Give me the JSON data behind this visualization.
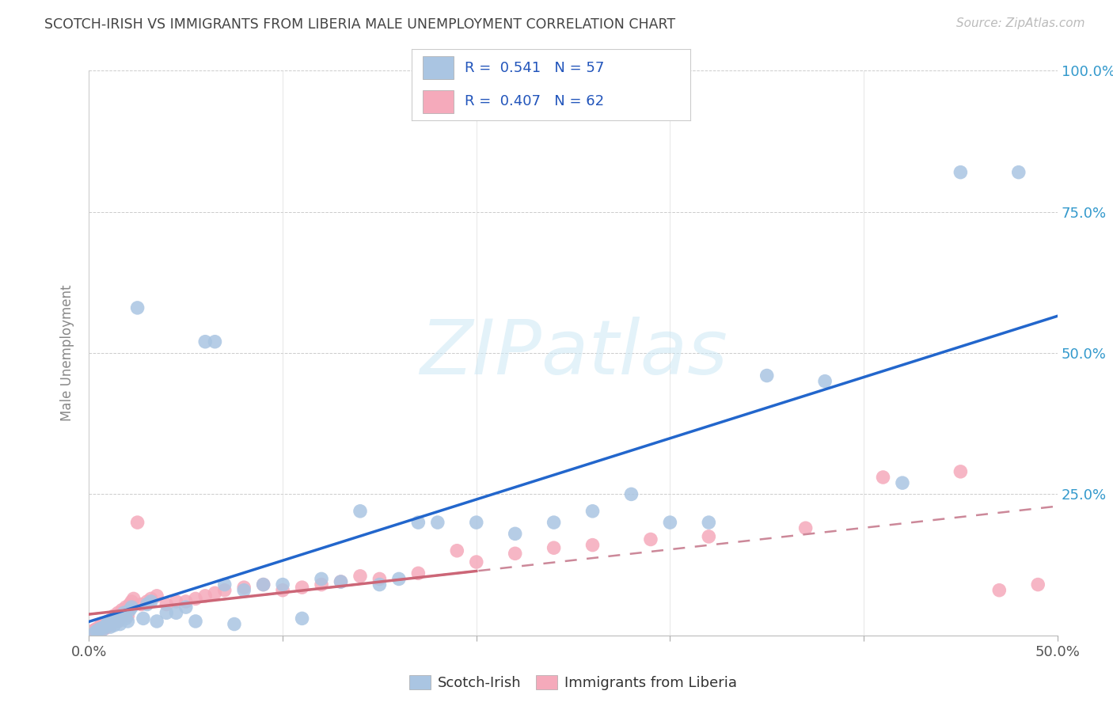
{
  "title": "SCOTCH-IRISH VS IMMIGRANTS FROM LIBERIA MALE UNEMPLOYMENT CORRELATION CHART",
  "source": "Source: ZipAtlas.com",
  "ylabel": "Male Unemployment",
  "xlim": [
    0.0,
    0.5
  ],
  "ylim": [
    0.0,
    1.0
  ],
  "scotch_irish_color": "#aac5e2",
  "liberia_color": "#f5aabb",
  "scotch_irish_line_color": "#2266cc",
  "liberia_line_color_solid": "#cc6677",
  "liberia_line_color_dash": "#cc8899",
  "background_color": "#ffffff",
  "watermark": "ZIPatlas",
  "scotch_irish_x": [
    0.003,
    0.004,
    0.005,
    0.006,
    0.007,
    0.008,
    0.009,
    0.01,
    0.01,
    0.011,
    0.012,
    0.013,
    0.014,
    0.015,
    0.016,
    0.017,
    0.018,
    0.019,
    0.02,
    0.021,
    0.022,
    0.025,
    0.028,
    0.03,
    0.032,
    0.035,
    0.04,
    0.045,
    0.05,
    0.055,
    0.06,
    0.065,
    0.07,
    0.075,
    0.08,
    0.09,
    0.1,
    0.11,
    0.12,
    0.13,
    0.14,
    0.15,
    0.16,
    0.17,
    0.18,
    0.2,
    0.22,
    0.24,
    0.26,
    0.28,
    0.3,
    0.32,
    0.35,
    0.38,
    0.42,
    0.45,
    0.48
  ],
  "scotch_irish_y": [
    0.005,
    0.008,
    0.01,
    0.012,
    0.01,
    0.015,
    0.018,
    0.02,
    0.025,
    0.015,
    0.022,
    0.018,
    0.03,
    0.025,
    0.02,
    0.035,
    0.04,
    0.03,
    0.025,
    0.045,
    0.05,
    0.58,
    0.03,
    0.055,
    0.06,
    0.025,
    0.04,
    0.04,
    0.05,
    0.025,
    0.52,
    0.52,
    0.09,
    0.02,
    0.08,
    0.09,
    0.09,
    0.03,
    0.1,
    0.095,
    0.22,
    0.09,
    0.1,
    0.2,
    0.2,
    0.2,
    0.18,
    0.2,
    0.22,
    0.25,
    0.2,
    0.2,
    0.46,
    0.45,
    0.27,
    0.82,
    0.82
  ],
  "liberia_x": [
    0.001,
    0.002,
    0.003,
    0.004,
    0.005,
    0.006,
    0.006,
    0.007,
    0.008,
    0.008,
    0.009,
    0.01,
    0.01,
    0.011,
    0.012,
    0.012,
    0.013,
    0.013,
    0.014,
    0.015,
    0.015,
    0.016,
    0.017,
    0.018,
    0.019,
    0.02,
    0.021,
    0.022,
    0.023,
    0.025,
    0.027,
    0.03,
    0.032,
    0.035,
    0.04,
    0.045,
    0.05,
    0.055,
    0.06,
    0.065,
    0.07,
    0.08,
    0.09,
    0.1,
    0.11,
    0.12,
    0.13,
    0.14,
    0.15,
    0.17,
    0.19,
    0.2,
    0.22,
    0.24,
    0.26,
    0.29,
    0.32,
    0.37,
    0.41,
    0.45,
    0.47,
    0.49
  ],
  "liberia_y": [
    0.005,
    0.008,
    0.01,
    0.012,
    0.01,
    0.015,
    0.018,
    0.02,
    0.012,
    0.018,
    0.015,
    0.02,
    0.025,
    0.018,
    0.022,
    0.03,
    0.025,
    0.035,
    0.03,
    0.025,
    0.04,
    0.035,
    0.045,
    0.04,
    0.05,
    0.035,
    0.055,
    0.06,
    0.065,
    0.2,
    0.055,
    0.06,
    0.065,
    0.07,
    0.055,
    0.06,
    0.06,
    0.065,
    0.07,
    0.075,
    0.08,
    0.085,
    0.09,
    0.08,
    0.085,
    0.09,
    0.095,
    0.105,
    0.1,
    0.11,
    0.15,
    0.13,
    0.145,
    0.155,
    0.16,
    0.17,
    0.175,
    0.19,
    0.28,
    0.29,
    0.08,
    0.09
  ]
}
